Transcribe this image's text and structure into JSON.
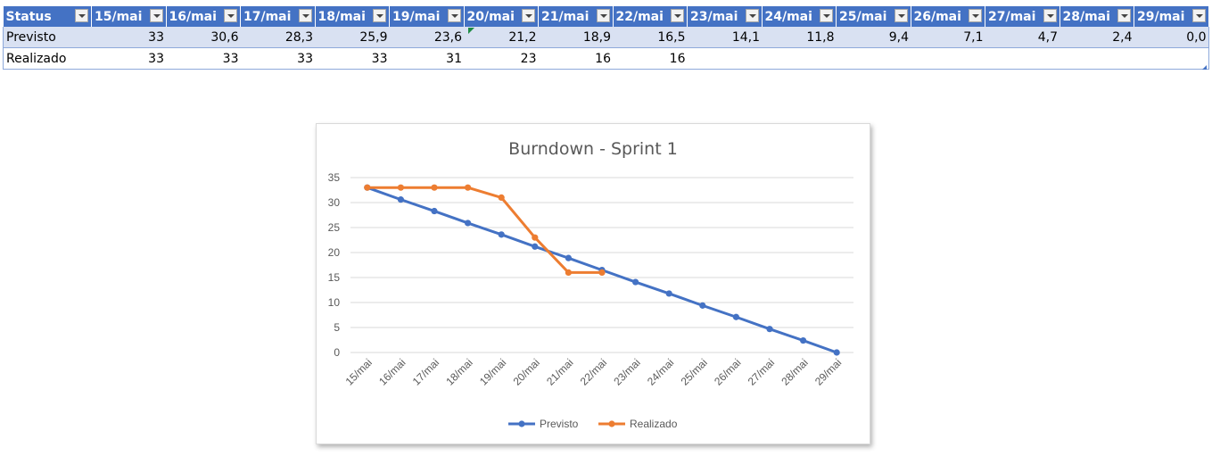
{
  "table": {
    "header_first": "Status",
    "dates": [
      "15/mai",
      "16/mai",
      "17/mai",
      "18/mai",
      "19/mai",
      "20/mai",
      "21/mai",
      "22/mai",
      "23/mai",
      "24/mai",
      "25/mai",
      "26/mai",
      "27/mai",
      "28/mai",
      "29/mai"
    ],
    "rows": [
      {
        "label": "Previsto",
        "values": [
          "33",
          "30,6",
          "28,3",
          "25,9",
          "23,6",
          "21,2",
          "18,9",
          "16,5",
          "14,1",
          "11,8",
          "9,4",
          "7,1",
          "4,7",
          "2,4",
          "0,0"
        ]
      },
      {
        "label": "Realizado",
        "values": [
          "33",
          "33",
          "33",
          "33",
          "31",
          "23",
          "16",
          "16",
          "",
          "",
          "",
          "",
          "",
          "",
          ""
        ]
      }
    ]
  },
  "chart_data": {
    "type": "line",
    "title": "Burndown - Sprint 1",
    "categories": [
      "15/mai",
      "16/mai",
      "17/mai",
      "18/mai",
      "19/mai",
      "20/mai",
      "21/mai",
      "22/mai",
      "23/mai",
      "24/mai",
      "25/mai",
      "26/mai",
      "27/mai",
      "28/mai",
      "29/mai"
    ],
    "series": [
      {
        "name": "Previsto",
        "color": "#4472c4",
        "values": [
          33,
          30.6,
          28.3,
          25.9,
          23.6,
          21.2,
          18.9,
          16.5,
          14.1,
          11.8,
          9.4,
          7.1,
          4.7,
          2.4,
          0.0
        ]
      },
      {
        "name": "Realizado",
        "color": "#ed7d31",
        "values": [
          33,
          33,
          33,
          33,
          31,
          23,
          16,
          16,
          null,
          null,
          null,
          null,
          null,
          null,
          null
        ]
      }
    ],
    "yticks": [
      0,
      5,
      10,
      15,
      20,
      25,
      30,
      35
    ],
    "ylim": [
      0,
      35
    ],
    "grid": true,
    "legend": "bottom"
  }
}
